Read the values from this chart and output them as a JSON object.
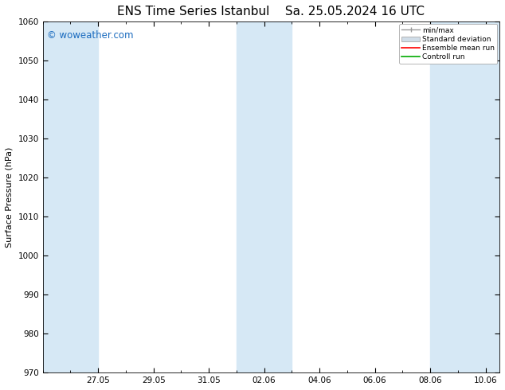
{
  "title": "ENS Time Series Istanbul",
  "title2": "Sa. 25.05.2024 16 UTC",
  "ylabel": "Surface Pressure (hPa)",
  "watermark": "© woweather.com",
  "watermark_color": "#1a6bbf",
  "ylim": [
    970,
    1060
  ],
  "yticks": [
    970,
    980,
    990,
    1000,
    1010,
    1020,
    1030,
    1040,
    1050,
    1060
  ],
  "shade_color": "#d6e8f5",
  "bg_color": "#ffffff",
  "plot_bg_color": "#ffffff",
  "grid_color": "#cccccc",
  "legend_labels": [
    "min/max",
    "Standard deviation",
    "Ensemble mean run",
    "Controll run"
  ],
  "title_fontsize": 11,
  "axis_fontsize": 8,
  "tick_fontsize": 7.5
}
